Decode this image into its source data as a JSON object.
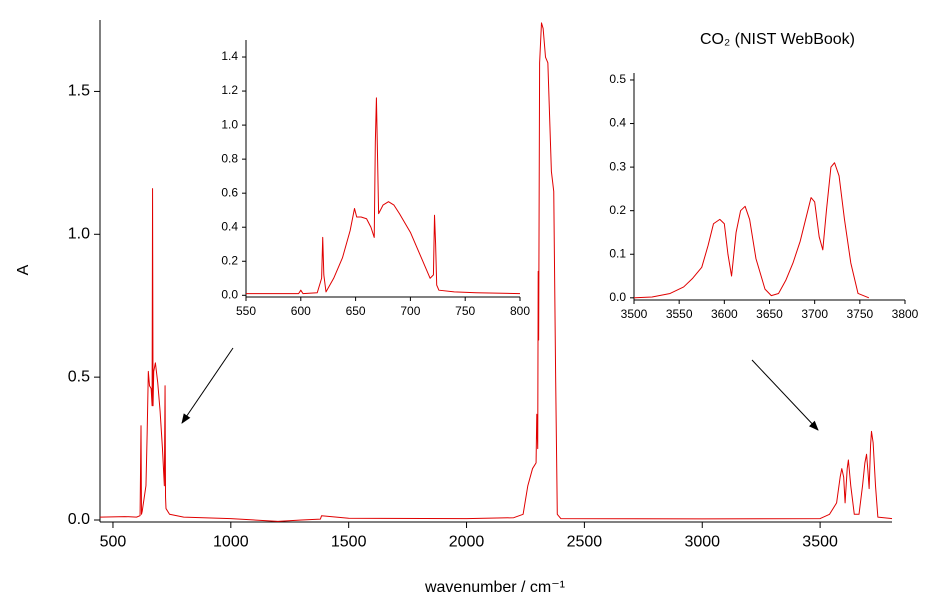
{
  "chart_data": [
    {
      "type": "line",
      "title": "CO₂  (NIST WebBook)",
      "xlabel": "wavenumber / cm⁻¹",
      "ylabel": "A",
      "color": "#e00000",
      "xlim": [
        445,
        3805
      ],
      "ylim": [
        -0.007,
        1.75
      ],
      "xticks": [
        500,
        1000,
        1500,
        2000,
        2500,
        3000,
        3500
      ],
      "yticks": [
        {
          "value": 0,
          "label": "0.0"
        },
        0.5,
        {
          "value": 1,
          "label": "1.0"
        },
        1.5
      ],
      "x": [
        445,
        550,
        600,
        615,
        619,
        621,
        624,
        640,
        645,
        650,
        655,
        662,
        666,
        668,
        670,
        673,
        680,
        690,
        700,
        710,
        718,
        721,
        723,
        725,
        740,
        800,
        1000,
        1200,
        1300,
        1380,
        1385,
        1500,
        2000,
        2200,
        2240,
        2260,
        2280,
        2295,
        2298,
        2302,
        2304,
        2306,
        2310,
        2318,
        2325,
        2335,
        2345,
        2360,
        2370,
        2378,
        2385,
        2400,
        3000,
        3500,
        3540,
        3570,
        3585,
        3592,
        3600,
        3606,
        3615,
        3620,
        3630,
        3645,
        3665,
        3680,
        3690,
        3697,
        3703,
        3708,
        3714,
        3718,
        3725,
        3735,
        3745,
        3805
      ],
      "values": [
        0.01,
        0.012,
        0.01,
        0.015,
        0.33,
        0.02,
        0.03,
        0.12,
        0.3,
        0.52,
        0.47,
        0.46,
        0.4,
        1.16,
        0.4,
        0.52,
        0.55,
        0.48,
        0.38,
        0.25,
        0.12,
        0.47,
        0.08,
        0.04,
        0.02,
        0.01,
        0.005,
        -0.005,
        0.0,
        0.003,
        0.015,
        0.006,
        0.005,
        0.008,
        0.02,
        0.12,
        0.18,
        0.2,
        0.37,
        0.25,
        0.87,
        0.63,
        1.6,
        1.74,
        1.72,
        1.62,
        1.6,
        1.22,
        1.15,
        0.5,
        0.02,
        0.005,
        0.004,
        0.005,
        0.02,
        0.06,
        0.15,
        0.18,
        0.15,
        0.06,
        0.18,
        0.21,
        0.12,
        0.02,
        0.02,
        0.12,
        0.2,
        0.23,
        0.17,
        0.11,
        0.26,
        0.31,
        0.27,
        0.12,
        0.01,
        0.005
      ]
    },
    {
      "type": "line",
      "color": "#e00000",
      "xlim": [
        550,
        800
      ],
      "ylim": [
        -0.01,
        1.5
      ],
      "xticks": [
        550,
        600,
        650,
        700,
        750,
        800
      ],
      "yticks": [
        {
          "value": 0,
          "label": "0.0"
        },
        0.2,
        0.4,
        0.6,
        0.8,
        {
          "value": 1,
          "label": "1.0"
        },
        1.2,
        1.4
      ],
      "x": [
        550,
        580,
        598,
        600,
        602,
        615,
        619,
        620,
        621,
        623,
        630,
        638,
        645,
        649,
        651,
        655,
        660,
        664,
        667,
        668,
        669,
        671,
        675,
        680,
        685,
        690,
        700,
        710,
        718,
        721,
        722,
        723,
        724,
        726,
        740,
        760,
        800
      ],
      "values": [
        0.01,
        0.01,
        0.01,
        0.03,
        0.01,
        0.015,
        0.1,
        0.34,
        0.12,
        0.02,
        0.1,
        0.22,
        0.38,
        0.51,
        0.46,
        0.46,
        0.45,
        0.4,
        0.34,
        0.9,
        1.16,
        0.48,
        0.53,
        0.55,
        0.53,
        0.48,
        0.37,
        0.22,
        0.1,
        0.12,
        0.47,
        0.3,
        0.06,
        0.03,
        0.02,
        0.015,
        0.01
      ]
    },
    {
      "type": "line",
      "color": "#e00000",
      "xlim": [
        3500,
        3800
      ],
      "ylim": [
        -0.005,
        0.516
      ],
      "xticks": [
        3500,
        3550,
        3600,
        3650,
        3700,
        3750,
        3800
      ],
      "yticks": [
        {
          "value": 0,
          "label": "0.0"
        },
        0.1,
        0.2,
        0.3,
        0.4,
        0.5
      ],
      "x": [
        3500,
        3520,
        3540,
        3555,
        3565,
        3575,
        3582,
        3588,
        3595,
        3600,
        3604,
        3608,
        3613,
        3618,
        3623,
        3628,
        3635,
        3645,
        3652,
        3660,
        3668,
        3676,
        3684,
        3690,
        3696,
        3700,
        3705,
        3709,
        3713,
        3718,
        3722,
        3727,
        3733,
        3740,
        3748,
        3760
      ],
      "values": [
        0.0,
        0.002,
        0.01,
        0.025,
        0.045,
        0.07,
        0.12,
        0.17,
        0.18,
        0.17,
        0.1,
        0.05,
        0.15,
        0.2,
        0.21,
        0.18,
        0.09,
        0.02,
        0.005,
        0.01,
        0.04,
        0.08,
        0.13,
        0.18,
        0.23,
        0.22,
        0.14,
        0.11,
        0.2,
        0.3,
        0.31,
        0.28,
        0.18,
        0.08,
        0.01,
        0.0
      ]
    }
  ]
}
